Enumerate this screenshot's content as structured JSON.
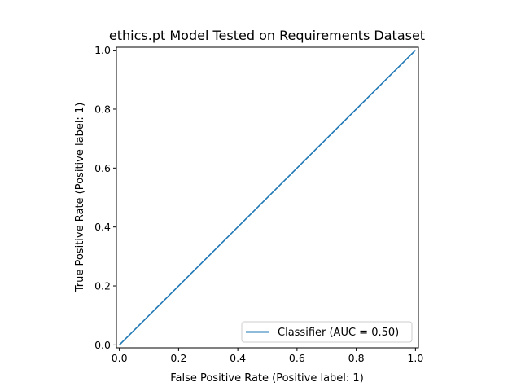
{
  "chart_data": {
    "type": "line",
    "title": "ethics.pt Model Tested on Requirements Dataset",
    "xlabel": "False Positive Rate (Positive label: 1)",
    "ylabel": "True Positive Rate (Positive label: 1)",
    "xlim": [
      -0.01,
      1.01
    ],
    "ylim": [
      -0.01,
      1.01
    ],
    "xticks": [
      "0.0",
      "0.2",
      "0.4",
      "0.6",
      "0.8",
      "1.0"
    ],
    "yticks": [
      "0.0",
      "0.2",
      "0.4",
      "0.6",
      "0.8",
      "1.0"
    ],
    "grid": false,
    "legend_position": "lower-right",
    "series": [
      {
        "name": "Classifier (AUC = 0.50)",
        "color": "#1f77b4",
        "x": [
          0.0,
          1.0
        ],
        "y": [
          0.0,
          1.0
        ]
      }
    ]
  }
}
